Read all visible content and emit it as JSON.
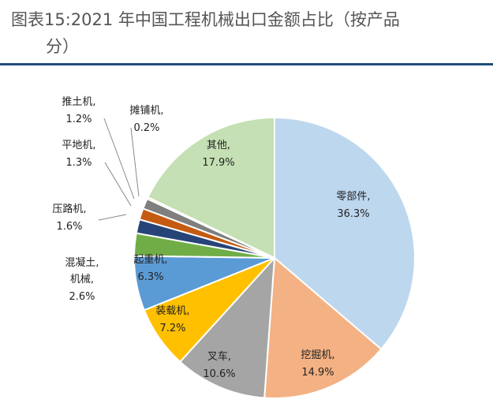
{
  "title": "图表15:2021 年中国工程机械出口金额占比（按产品分）",
  "title_lines": [
    "图表15:2021 年中国工程机械出口金额占比（按产品",
    "分）"
  ],
  "chart_data": {
    "type": "pie",
    "title": "图表15:2021 年中国工程机械出口金额占比（按产品分）",
    "start": "12 o'clock",
    "direction": "clockwise",
    "legend": "none",
    "slices": [
      {
        "name": "零部件",
        "value": 36.3,
        "pct_label": "36.3%",
        "color": "#bdd7ee"
      },
      {
        "name": "挖掘机",
        "value": 14.9,
        "pct_label": "14.9%",
        "color": "#f4b183"
      },
      {
        "name": "叉车",
        "value": 10.6,
        "pct_label": "10.6%",
        "color": "#a5a5a5"
      },
      {
        "name": "装载机",
        "value": 7.2,
        "pct_label": "7.2%",
        "color": "#ffc000"
      },
      {
        "name": "起重机",
        "value": 6.3,
        "pct_label": "6.3%",
        "color": "#5b9bd5"
      },
      {
        "name": "混凝土机械",
        "value": 2.6,
        "pct_label": "2.6%",
        "color": "#70ad47"
      },
      {
        "name": "压路机",
        "value": 1.6,
        "pct_label": "1.6%",
        "color": "#264478"
      },
      {
        "name": "平地机",
        "value": 1.3,
        "pct_label": "1.3%",
        "color": "#c55a11"
      },
      {
        "name": "推土机",
        "value": 1.2,
        "pct_label": "1.2%",
        "color": "#7f7f7f"
      },
      {
        "name": "摊铺机",
        "value": 0.2,
        "pct_label": "0.2%",
        "color": "#997300"
      },
      {
        "name": "其他",
        "value": 17.9,
        "pct_label": "17.9%",
        "color": "#c5e0b4"
      }
    ]
  }
}
